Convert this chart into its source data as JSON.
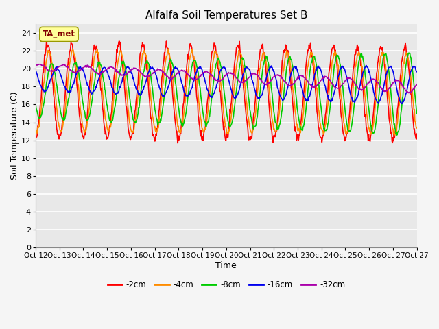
{
  "title": "Alfalfa Soil Temperatures Set B",
  "xlabel": "Time",
  "ylabel": "Soil Temperature (C)",
  "ylim": [
    0,
    25
  ],
  "yticks": [
    0,
    2,
    4,
    6,
    8,
    10,
    12,
    14,
    16,
    18,
    20,
    22,
    24
  ],
  "x_tick_labels": [
    "Oct 12",
    "Oct 13",
    "Oct 14",
    "Oct 15",
    "Oct 16",
    "Oct 17",
    "Oct 18",
    "Oct 19",
    "Oct 20",
    "Oct 21",
    "Oct 22",
    "Oct 23",
    "Oct 24",
    "Oct 25",
    "Oct 26",
    "Oct 27"
  ],
  "annotation_text": "TA_met",
  "annotation_box_color": "#FFFF99",
  "annotation_text_color": "#800000",
  "colors": {
    "-2cm": "#FF0000",
    "-4cm": "#FF8C00",
    "-8cm": "#00CC00",
    "-16cm": "#0000EE",
    "-32cm": "#AA00AA"
  },
  "line_width": 1.2,
  "bg_color": "#E8E8E8",
  "fig_bg_color": "#F5F5F5",
  "legend_labels": [
    "-2cm",
    "-4cm",
    "-8cm",
    "-16cm",
    "-32cm"
  ],
  "n_points_per_day": 48,
  "n_days": 16
}
